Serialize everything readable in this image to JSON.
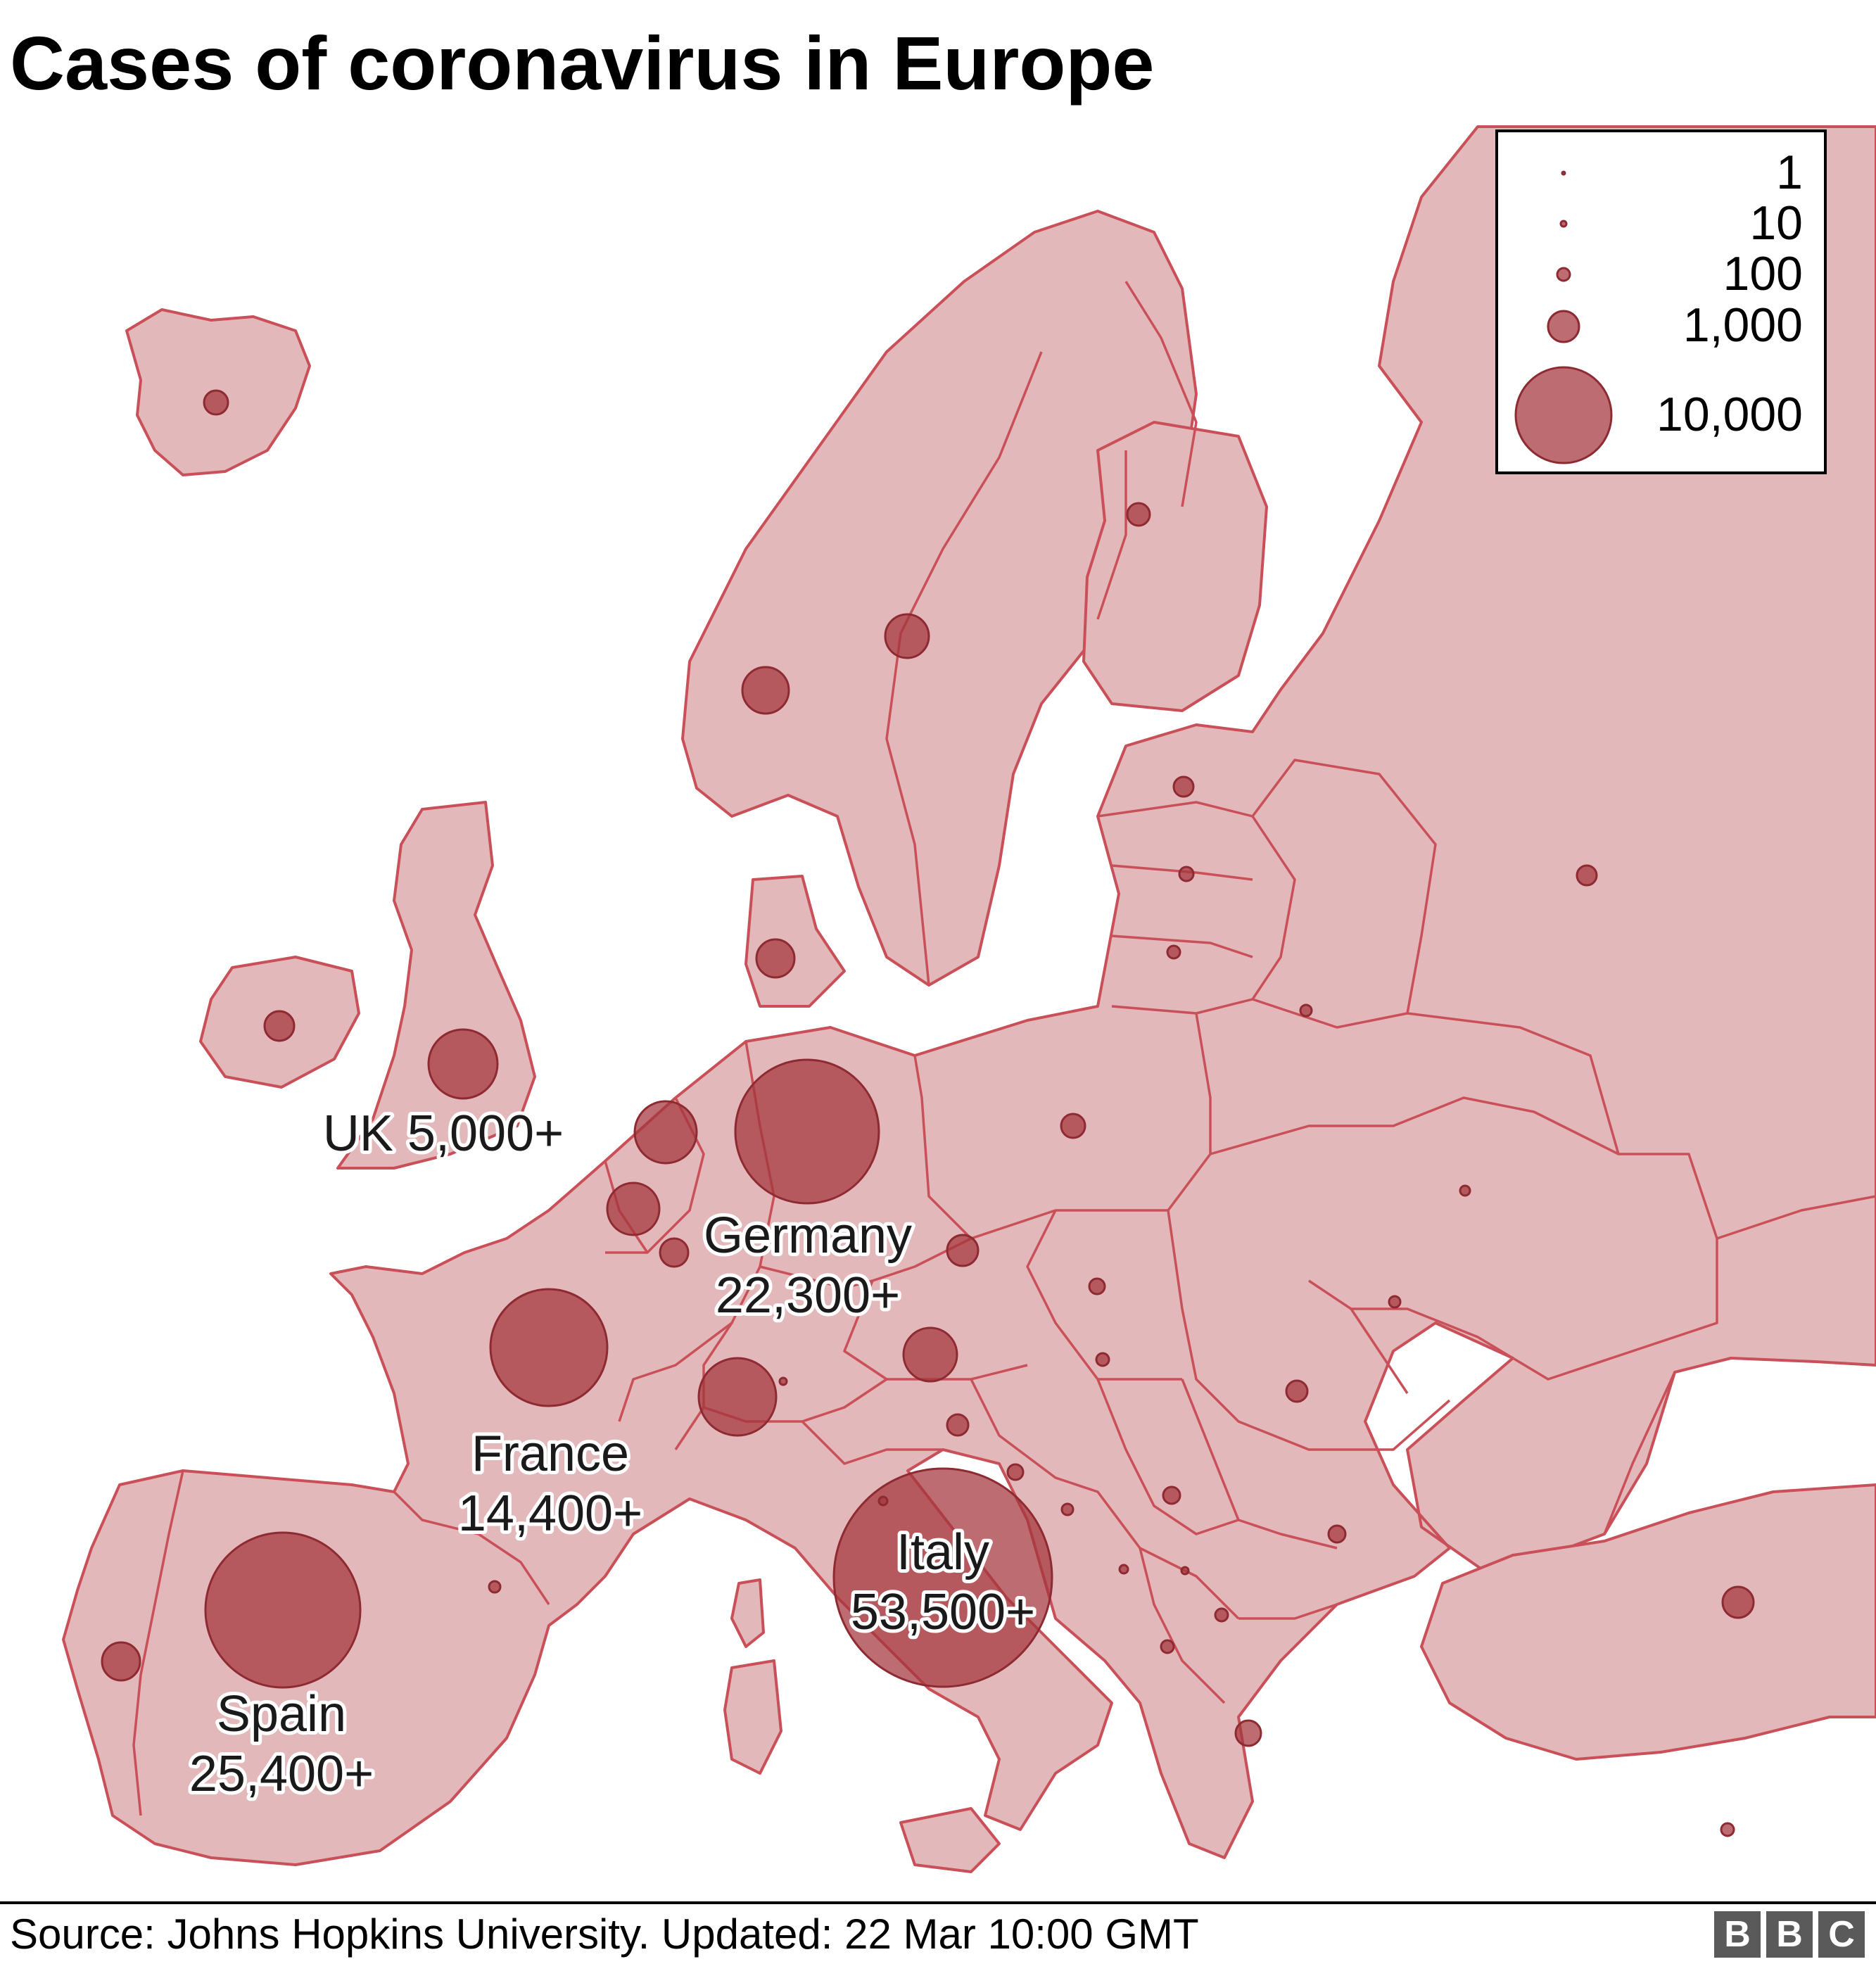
{
  "title": "Cases of coronavirus in Europe",
  "source": "Source: Johns Hopkins University. Updated: 22 Mar 10:00 GMT",
  "logo": [
    "B",
    "B",
    "C"
  ],
  "colors": {
    "land": "#e3b8bb",
    "border": "#c95058",
    "bubble": "#a3343c"
  },
  "legend": [
    {
      "label": "1",
      "value": 1
    },
    {
      "label": "10",
      "value": 10
    },
    {
      "label": "100",
      "value": 100
    },
    {
      "label": "1,000",
      "value": 1000
    },
    {
      "label": "10,000",
      "value": 10000
    }
  ],
  "labelled_countries": [
    {
      "id": "uk",
      "name": "UK",
      "cases_label": "5,000+",
      "cases": 5000,
      "text": "UK 5,000+"
    },
    {
      "id": "germany",
      "name": "Germany",
      "cases_label": "22,300+",
      "cases": 22300
    },
    {
      "id": "france",
      "name": "France",
      "cases_label": "14,400+",
      "cases": 14400
    },
    {
      "id": "italy",
      "name": "Italy",
      "cases_label": "53,500+",
      "cases": 53500
    },
    {
      "id": "spain",
      "name": "Spain",
      "cases_label": "25,400+",
      "cases": 25400
    }
  ]
}
